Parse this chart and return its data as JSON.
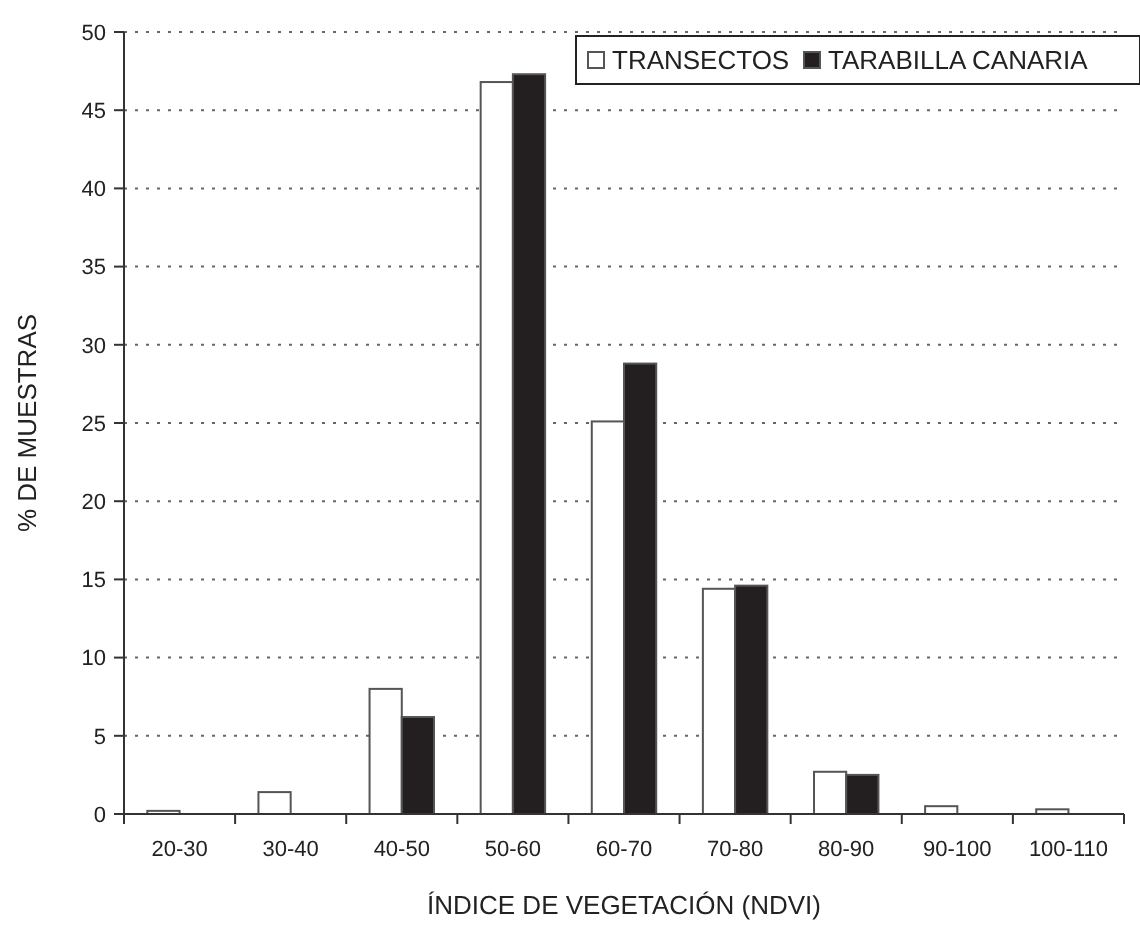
{
  "chart_data": {
    "type": "bar",
    "xlabel": "ÍNDICE DE VEGETACIÓN (NDVI)",
    "ylabel": "% DE MUESTRAS",
    "categories": [
      "20-30",
      "30-40",
      "40-50",
      "50-60",
      "60-70",
      "70-80",
      "80-90",
      "90-100",
      "100-110"
    ],
    "series": [
      {
        "name": "TRANSECTOS",
        "color": "#ffffff",
        "values": [
          0.2,
          1.4,
          8.0,
          46.8,
          25.1,
          14.4,
          2.7,
          0.5,
          0.3
        ]
      },
      {
        "name": "TARABILLA CANARIA",
        "color": "#231f20",
        "values": [
          0,
          0,
          6.2,
          47.3,
          28.8,
          14.6,
          2.5,
          0,
          0
        ]
      }
    ],
    "ylim": [
      0,
      50
    ],
    "yticks": [
      0,
      5,
      10,
      15,
      20,
      25,
      30,
      35,
      40,
      45,
      50
    ],
    "grid": "y",
    "legend": "top right"
  }
}
